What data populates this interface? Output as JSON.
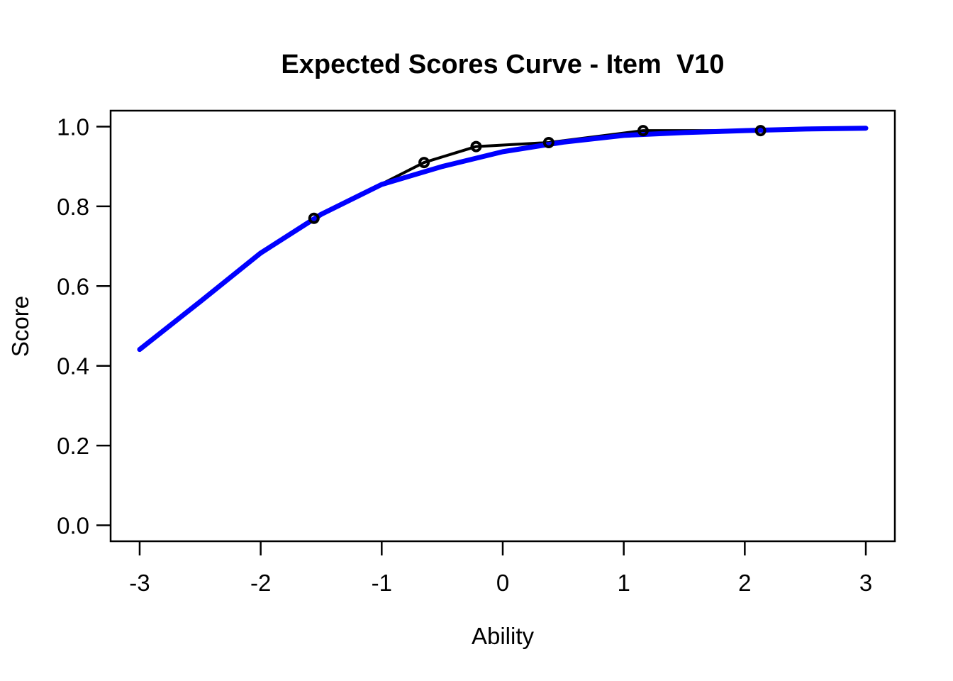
{
  "window": {
    "background_color": "#FFFFFF"
  },
  "chart_data": {
    "type": "line",
    "title": "Expected Scores Curve - Item  V10",
    "xlabel": "Ability",
    "ylabel": "Score",
    "xlim": [
      -3.24,
      3.24
    ],
    "ylim": [
      -0.04,
      1.04
    ],
    "grid": false,
    "legend": "none",
    "x_ticks": {
      "values": [
        -3,
        -2,
        -1,
        0,
        1,
        2,
        3
      ],
      "labels": [
        "-3",
        "-2",
        "-1",
        "0",
        "1",
        "2",
        "3"
      ]
    },
    "y_ticks": {
      "values": [
        0.0,
        0.2,
        0.4,
        0.6,
        0.8,
        1.0
      ],
      "labels": [
        "0.0",
        "0.2",
        "0.4",
        "0.6",
        "0.8",
        "1.0"
      ]
    },
    "series": [
      {
        "name": "model-expected-score-curve",
        "type": "line",
        "color": "#0000FF",
        "line_width": 7,
        "x": [
          -3.0,
          -2.5,
          -2.0,
          -1.5,
          -1.0,
          -0.5,
          0.0,
          0.5,
          1.0,
          1.5,
          2.0,
          2.5,
          3.0
        ],
        "y": [
          0.441,
          0.561,
          0.683,
          0.78,
          0.855,
          0.9,
          0.937,
          0.961,
          0.978,
          0.985,
          0.99,
          0.994,
          0.996
        ]
      },
      {
        "name": "empirical-expected-score",
        "type": "line+markers",
        "color": "#000000",
        "line_width": 4,
        "marker": "open-circle",
        "marker_radius": 6,
        "marker_stroke_width": 4,
        "x": [
          -1.56,
          -0.65,
          -0.22,
          0.38,
          1.16,
          2.13
        ],
        "y": [
          0.77,
          0.91,
          0.95,
          0.96,
          0.99,
          0.99
        ]
      }
    ],
    "colors": {
      "model_curve": "#0000FF",
      "empirical": "#000000",
      "axis": "#000000"
    }
  }
}
